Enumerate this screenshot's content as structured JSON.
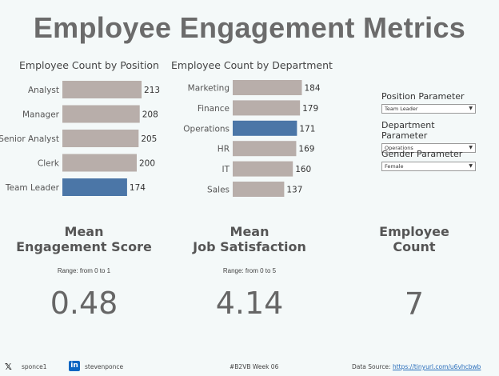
{
  "title": "Employee Engagement Metrics",
  "colors": {
    "bar_default": "#b8aeaa",
    "bar_highlight": "#4b76a7",
    "text": "#555555",
    "background": "#f4f9f9"
  },
  "chart_data": [
    {
      "type": "bar",
      "orientation": "horizontal",
      "title": "Employee Count by Position",
      "categories": [
        "Analyst",
        "Manager",
        "Senior Analyst",
        "Clerk",
        "Team Leader"
      ],
      "values": [
        213,
        208,
        205,
        200,
        174
      ],
      "highlight": "Team Leader"
    },
    {
      "type": "bar",
      "orientation": "horizontal",
      "title": "Employee Count by Department",
      "categories": [
        "Marketing",
        "Finance",
        "Operations",
        "HR",
        "IT",
        "Sales"
      ],
      "values": [
        184,
        179,
        171,
        169,
        160,
        137
      ],
      "highlight": "Operations"
    }
  ],
  "parameters": [
    {
      "label": "Position Parameter",
      "value": "Team Leader"
    },
    {
      "label": "Department Parameter",
      "value": "Operations"
    },
    {
      "label": "Gender Parameter",
      "value": "Female"
    }
  ],
  "kpis": {
    "engagement": {
      "title_line1": "Mean",
      "title_line2": "Engagement Score",
      "range": "Range: from 0 to 1",
      "value": "0.48"
    },
    "satisfaction": {
      "title_line1": "Mean",
      "title_line2": "Job Satisfaction",
      "range": "Range: from 0 to 5",
      "value": "4.14"
    },
    "count": {
      "title_line1": "Employee",
      "title_line2": "Count",
      "value": "7"
    }
  },
  "footer": {
    "x_handle": "sponce1",
    "linkedin_handle": "stevenponce",
    "tag": "#B2VB Week 06",
    "source_label": "Data Source:",
    "source_link": "https://tinyurl.com/u6vhcbwb"
  }
}
